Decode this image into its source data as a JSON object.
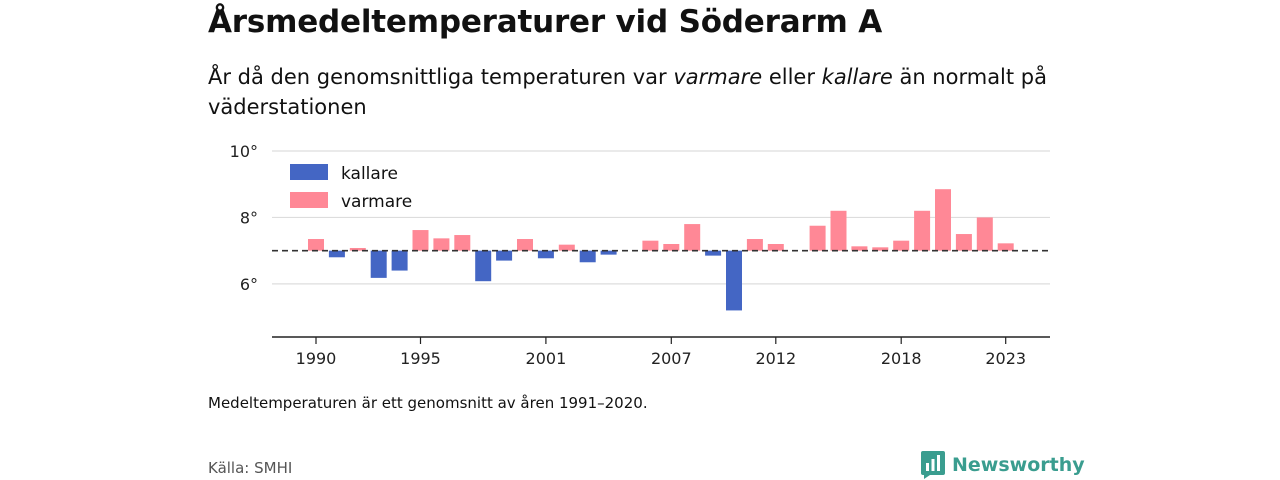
{
  "header": {
    "title": "Årsmedeltemperaturer vid Söderarm A",
    "subtitle_pre": "År då den genomsnittliga temperaturen var ",
    "subtitle_warm": "varmare",
    "subtitle_mid": " eller ",
    "subtitle_cold": "kallare",
    "subtitle_post": " än normalt på väderstationen"
  },
  "footer": {
    "note": "Medeltemperaturen är ett genomsnitt av åren 1991–2020.",
    "source": "Källa: SMHI",
    "brand": "Newsworthy"
  },
  "colors": {
    "kallare": "#4466c4",
    "varmare": "#ff8896",
    "brand": "#3a9d8f"
  },
  "chart_data": {
    "type": "bar",
    "baseline": 7.0,
    "baseline_style": "dashed",
    "ylim": [
      4.4,
      10
    ],
    "y_ticks": [
      {
        "value": 6,
        "label": "6°"
      },
      {
        "value": 8,
        "label": "8°"
      },
      {
        "value": 10,
        "label": "10°"
      }
    ],
    "x_ticks": [
      1990,
      1995,
      2001,
      2007,
      2012,
      2018,
      2023
    ],
    "grid": true,
    "legend": {
      "position": "top-left",
      "entries": [
        {
          "key": "kallare",
          "label": "kallare"
        },
        {
          "key": "varmare",
          "label": "varmare"
        }
      ]
    },
    "years": [
      1990,
      1991,
      1992,
      1993,
      1994,
      1995,
      1996,
      1997,
      1998,
      1999,
      2000,
      2001,
      2002,
      2003,
      2004,
      2005,
      2006,
      2007,
      2008,
      2009,
      2010,
      2011,
      2012,
      2013,
      2014,
      2015,
      2016,
      2017,
      2018,
      2019,
      2020,
      2021,
      2022,
      2023
    ],
    "values": [
      7.35,
      6.8,
      7.08,
      6.18,
      6.4,
      7.62,
      7.37,
      7.47,
      6.08,
      6.7,
      7.35,
      6.77,
      7.18,
      6.65,
      6.88,
      null,
      7.3,
      7.2,
      7.8,
      6.85,
      5.2,
      7.35,
      7.2,
      null,
      7.75,
      8.2,
      7.13,
      7.1,
      7.3,
      8.2,
      8.85,
      7.5,
      8.0,
      7.22
    ]
  }
}
